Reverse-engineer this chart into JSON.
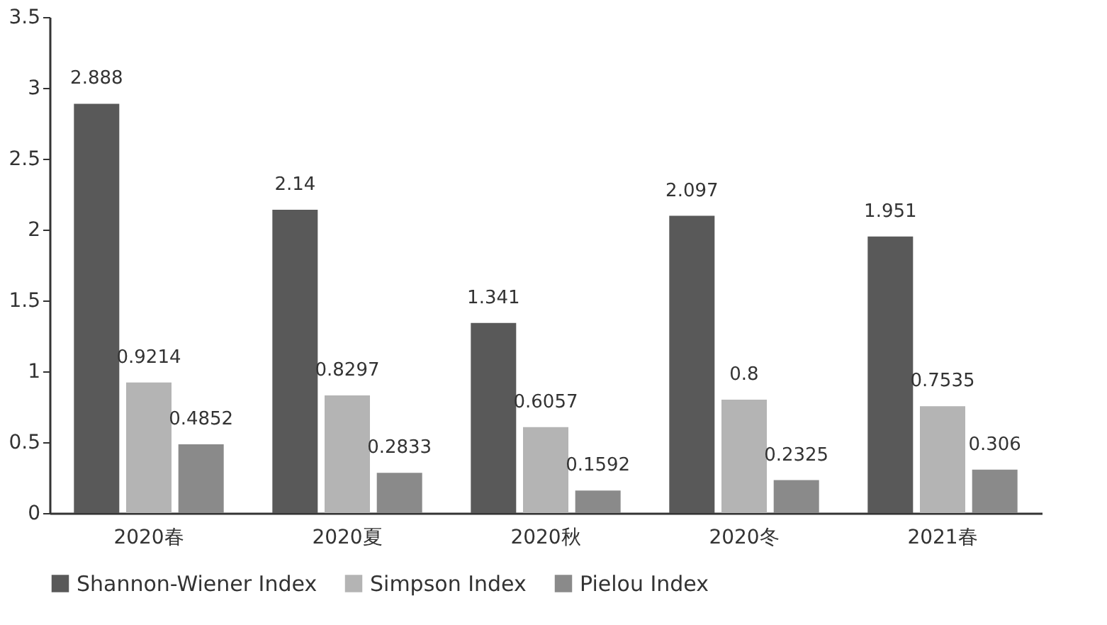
{
  "chart_data": {
    "type": "bar",
    "categories": [
      "2020春",
      "2020夏",
      "2020秋",
      "2020冬",
      "2021春"
    ],
    "series": [
      {
        "name": "Shannon-Wiener Index",
        "color": "#595959",
        "values": [
          2.888,
          2.14,
          1.341,
          2.097,
          1.951
        ]
      },
      {
        "name": "Simpson Index",
        "color": "#b4b4b4",
        "values": [
          0.9214,
          0.8297,
          0.6057,
          0.8,
          0.7535
        ]
      },
      {
        "name": "Pielou Index",
        "color": "#8a8a8a",
        "values": [
          0.4852,
          0.2833,
          0.1592,
          0.2325,
          0.306
        ]
      }
    ],
    "ylim": [
      0,
      3.5
    ],
    "yticks": [
      0,
      0.5,
      1,
      1.5,
      2,
      2.5,
      3,
      3.5
    ],
    "data_labels": true,
    "grid": false,
    "legend": "bottom"
  }
}
